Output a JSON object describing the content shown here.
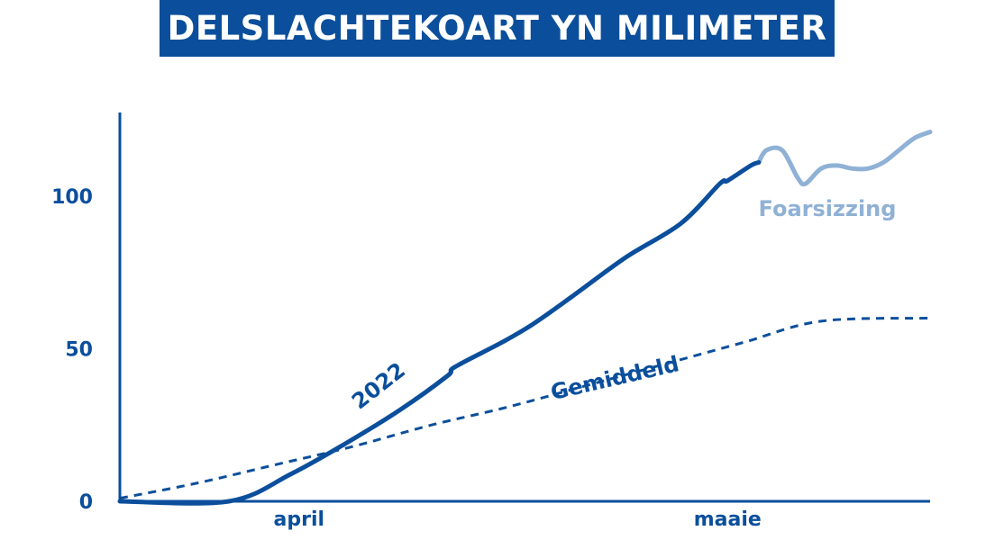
{
  "title": "DELSLACHTEKOART YN MILIMETER",
  "colors": {
    "primary": "#0b4f9c",
    "forecast": "#8fb1d6",
    "background": "#ffffff",
    "title_text": "#ffffff"
  },
  "chart_data": {
    "type": "line",
    "title": "DELSLACHTEKOART YN MILIMETER",
    "xlabel": "",
    "ylabel": "",
    "ylim": [
      0,
      125
    ],
    "yticks": [
      "0",
      "50",
      "100"
    ],
    "ytick_values": [
      0,
      50,
      100
    ],
    "xticks": [
      "april",
      "maaie"
    ],
    "grid": false,
    "legend": "none",
    "series": [
      {
        "name": "2022",
        "style": "solid",
        "color": "#0b4f9c",
        "points": [
          [
            0,
            0
          ],
          [
            14,
            0
          ],
          [
            22,
            9
          ],
          [
            29,
            19
          ],
          [
            36,
            30
          ],
          [
            42,
            41
          ],
          [
            43,
            44
          ],
          [
            49,
            52
          ],
          [
            53,
            58
          ],
          [
            58,
            67
          ],
          [
            65,
            80
          ],
          [
            72,
            91
          ],
          [
            77,
            104
          ],
          [
            78,
            105
          ],
          [
            81,
            110
          ],
          [
            82,
            111
          ]
        ]
      },
      {
        "name": "Gemiddeld",
        "style": "dashed",
        "color": "#0b4f9c",
        "points": [
          [
            0,
            1
          ],
          [
            10,
            6
          ],
          [
            20,
            12
          ],
          [
            30,
            18
          ],
          [
            40,
            25
          ],
          [
            50,
            31
          ],
          [
            60,
            38
          ],
          [
            70,
            45
          ],
          [
            80,
            52
          ],
          [
            90,
            59
          ],
          [
            104,
            60
          ]
        ]
      },
      {
        "name": "Foarsizzing",
        "style": "solid",
        "color": "#8fb1d6",
        "points": [
          [
            82,
            111
          ],
          [
            83,
            115
          ],
          [
            85,
            115
          ],
          [
            87,
            106
          ],
          [
            88,
            104
          ],
          [
            90,
            109
          ],
          [
            92,
            110
          ],
          [
            94,
            109
          ],
          [
            96,
            109
          ],
          [
            98,
            111
          ],
          [
            100,
            115
          ],
          [
            102,
            119
          ],
          [
            104,
            121
          ]
        ]
      }
    ],
    "x_range": [
      0,
      104
    ],
    "xtick_values": [
      23,
      78
    ]
  }
}
